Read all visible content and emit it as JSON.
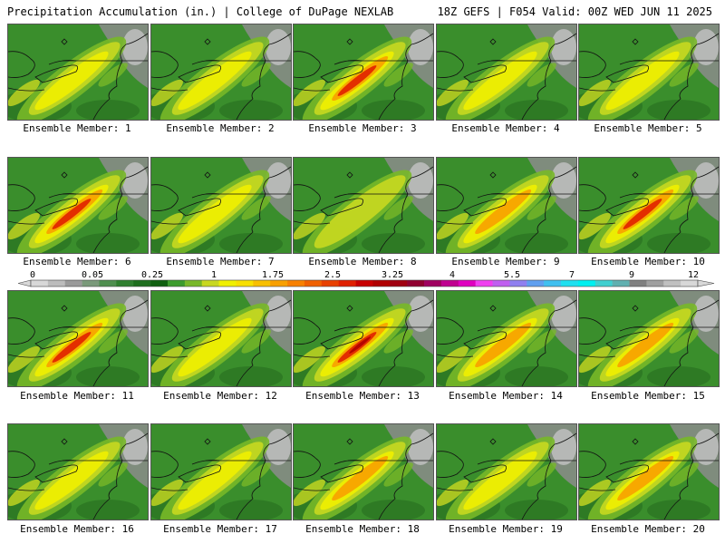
{
  "header": {
    "title_left": "Precipitation Accumulation (in.) | College of DuPage NEXLAB",
    "title_right": "18Z GEFS | F054 Valid: 00Z WED JUN 11 2025"
  },
  "panels": [
    {
      "label": "Ensemble Member: 1",
      "intensity": 1
    },
    {
      "label": "Ensemble Member: 2",
      "intensity": 1
    },
    {
      "label": "Ensemble Member: 3",
      "intensity": 3
    },
    {
      "label": "Ensemble Member: 4",
      "intensity": 1
    },
    {
      "label": "Ensemble Member: 5",
      "intensity": 1
    },
    {
      "label": "Ensemble Member: 6",
      "intensity": 3
    },
    {
      "label": "Ensemble Member: 7",
      "intensity": 1
    },
    {
      "label": "Ensemble Member: 8",
      "intensity": 0
    },
    {
      "label": "Ensemble Member: 9",
      "intensity": 2
    },
    {
      "label": "Ensemble Member: 10",
      "intensity": 3
    },
    {
      "label": "Ensemble Member: 11",
      "intensity": 3
    },
    {
      "label": "Ensemble Member: 12",
      "intensity": 1
    },
    {
      "label": "Ensemble Member: 13",
      "intensity": 4
    },
    {
      "label": "Ensemble Member: 14",
      "intensity": 2
    },
    {
      "label": "Ensemble Member: 15",
      "intensity": 2
    },
    {
      "label": "Ensemble Member: 16",
      "intensity": 1
    },
    {
      "label": "Ensemble Member: 17",
      "intensity": 1
    },
    {
      "label": "Ensemble Member: 18",
      "intensity": 2
    },
    {
      "label": "Ensemble Member: 19",
      "intensity": 1
    },
    {
      "label": "Ensemble Member: 20",
      "intensity": 2
    }
  ],
  "colorbar": {
    "labels": [
      "0",
      "0.05",
      "0.25",
      "1",
      "1.75",
      "2.5",
      "3.25",
      "4",
      "5.5",
      "7",
      "9",
      "12"
    ],
    "colors": [
      "#d8d8d8",
      "#bcbcbc",
      "#9a9a9a",
      "#7a9a7a",
      "#4f8f4f",
      "#2f7f2f",
      "#1e6e1e",
      "#0f5f0f",
      "#3c9c2c",
      "#78b828",
      "#c8d820",
      "#f0f000",
      "#f8e000",
      "#f8c000",
      "#f8a000",
      "#f88000",
      "#f06000",
      "#e84000",
      "#e02000",
      "#c80000",
      "#b00000",
      "#a00010",
      "#900030",
      "#a00060",
      "#c00090",
      "#e000c0",
      "#f040f0",
      "#c060f0",
      "#9080f0",
      "#60a0f0",
      "#40c0f0",
      "#20e0f0",
      "#00f0f0",
      "#40d0d0",
      "#60b0b0",
      "#808080",
      "#a0a0a0",
      "#c0c0c0",
      "#d8d8d8"
    ]
  }
}
